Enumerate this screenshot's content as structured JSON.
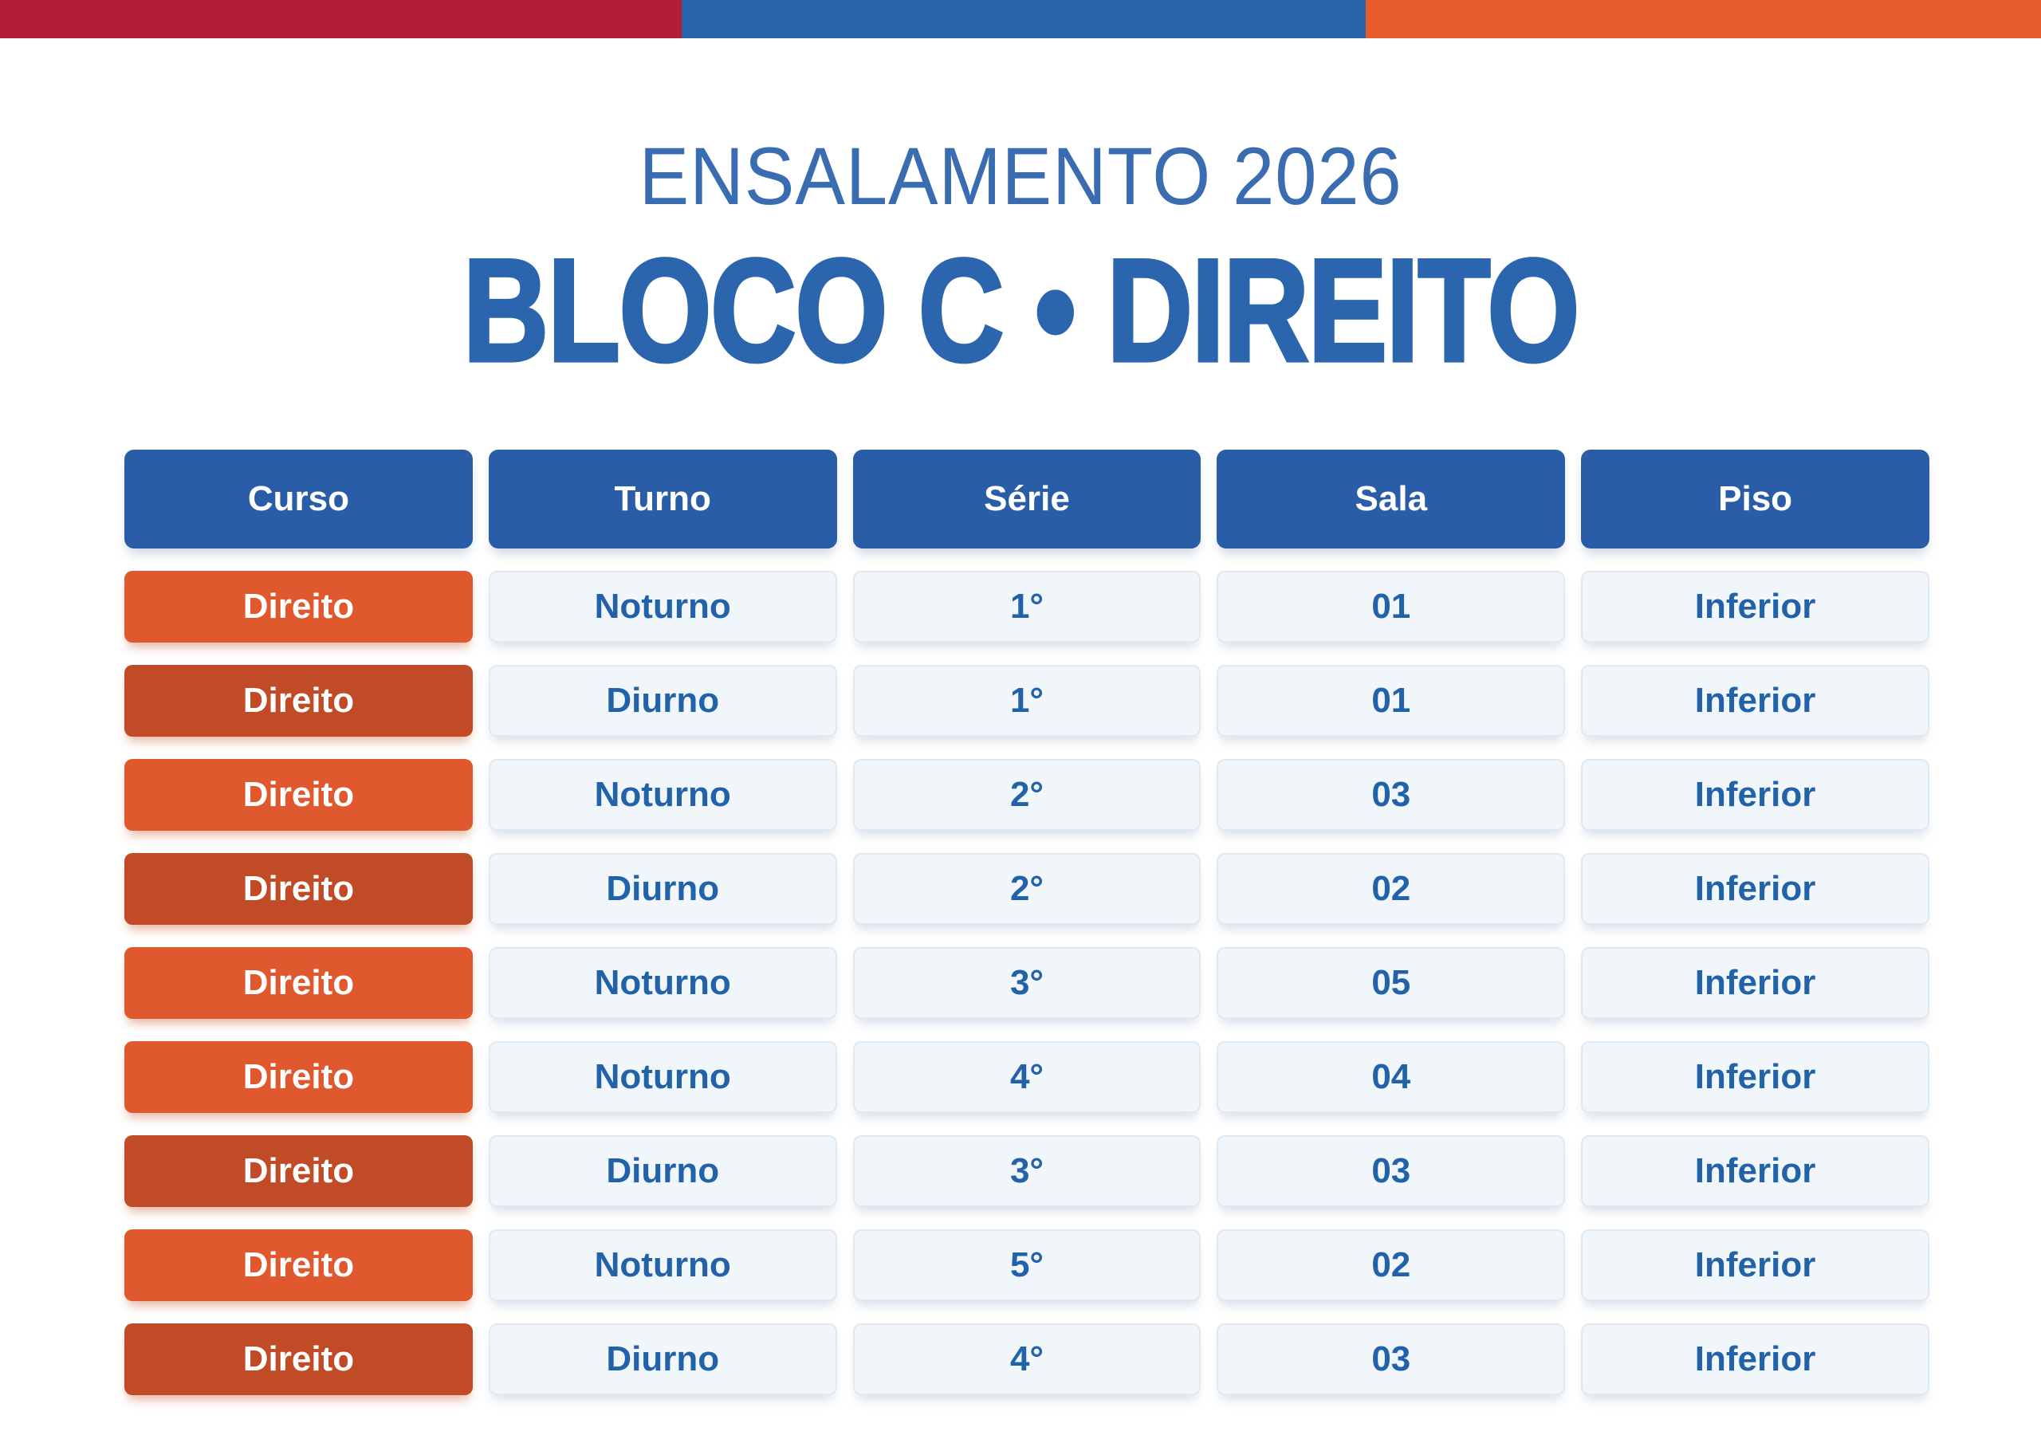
{
  "page": {
    "subtitle": "ENSALAMENTO 2026",
    "title": "BLOCO C • DIREITO"
  },
  "top_bar": {
    "segments": [
      {
        "name": "red",
        "color": "#B21E35"
      },
      {
        "name": "blue",
        "color": "#2A62AC"
      },
      {
        "name": "orange",
        "color": "#E65C2C"
      }
    ]
  },
  "colors": {
    "bar-red": "#B21E35",
    "bar-blue": "#2A62AC",
    "bar-orange": "#E65C2C",
    "subtitle-blue": "#3A6CB1",
    "title-blue": "#2A65AE",
    "header-blue": "#2A5DA8",
    "cell-text-blue": "#2262A9",
    "cell-bg": "#F1F6FB",
    "cell-border": "#E0E9F2",
    "orange-light": "#E0592E",
    "orange-dark": "#C04B26"
  },
  "table": {
    "headers": [
      "Curso",
      "Turno",
      "Série",
      "Sala",
      "Piso"
    ],
    "rows": [
      {
        "curso": "Direito",
        "turno": "Noturno",
        "serie": "1°",
        "sala": "01",
        "piso": "Inferior",
        "shade": "light"
      },
      {
        "curso": "Direito",
        "turno": "Diurno",
        "serie": "1°",
        "sala": "01",
        "piso": "Inferior",
        "shade": "dark"
      },
      {
        "curso": "Direito",
        "turno": "Noturno",
        "serie": "2°",
        "sala": "03",
        "piso": "Inferior",
        "shade": "light"
      },
      {
        "curso": "Direito",
        "turno": "Diurno",
        "serie": "2°",
        "sala": "02",
        "piso": "Inferior",
        "shade": "dark"
      },
      {
        "curso": "Direito",
        "turno": "Noturno",
        "serie": "3°",
        "sala": "05",
        "piso": "Inferior",
        "shade": "light"
      },
      {
        "curso": "Direito",
        "turno": "Noturno",
        "serie": "4°",
        "sala": "04",
        "piso": "Inferior",
        "shade": "light"
      },
      {
        "curso": "Direito",
        "turno": "Diurno",
        "serie": "3°",
        "sala": "03",
        "piso": "Inferior",
        "shade": "dark"
      },
      {
        "curso": "Direito",
        "turno": "Noturno",
        "serie": "5°",
        "sala": "02",
        "piso": "Inferior",
        "shade": "light"
      },
      {
        "curso": "Direito",
        "turno": "Diurno",
        "serie": "4°",
        "sala": "03",
        "piso": "Inferior",
        "shade": "dark"
      }
    ]
  }
}
